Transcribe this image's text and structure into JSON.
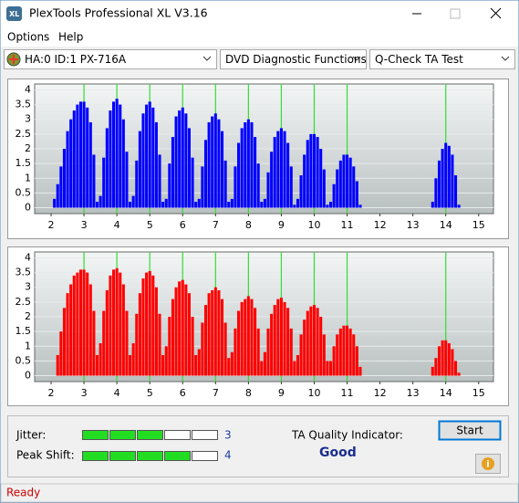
{
  "window": {
    "title": "PlexTools Professional XL V3.16"
  },
  "menu": [
    "Options",
    "Help"
  ],
  "toolbar": {
    "drive": "HA:0 ID:1  PX-716A",
    "function": "DVD Diagnostic Functions",
    "test": "Q-Check TA Test"
  },
  "chart_data": [
    {
      "type": "bar",
      "color": "#0000ff",
      "marker_color": "#33dd33",
      "xlim": [
        1.5,
        15.45
      ],
      "ylim": [
        -0.2,
        4.2
      ],
      "xticks": [
        2,
        3,
        4,
        5,
        6,
        7,
        8,
        9,
        10,
        11,
        12,
        13,
        14,
        15
      ],
      "yticks": [
        0,
        0.5,
        1,
        1.5,
        2,
        2.5,
        3,
        3.5,
        4
      ],
      "markers": [
        3,
        4,
        5,
        6,
        7,
        8,
        9,
        10,
        11,
        14
      ],
      "x": [
        2,
        2.1,
        2.2,
        2.3,
        2.4,
        2.5,
        2.6,
        2.7,
        2.8,
        2.9,
        3,
        3.1,
        3.2,
        3.3,
        3.4,
        3.5,
        3.6,
        3.7,
        3.8,
        3.9,
        4,
        4.1,
        4.2,
        4.3,
        4.4,
        4.5,
        4.6,
        4.7,
        4.8,
        4.9,
        5,
        5.1,
        5.2,
        5.3,
        5.4,
        5.5,
        5.6,
        5.7,
        5.8,
        5.9,
        6,
        6.1,
        6.2,
        6.3,
        6.4,
        6.5,
        6.6,
        6.7,
        6.8,
        6.9,
        7,
        7.1,
        7.2,
        7.3,
        7.4,
        7.5,
        7.6,
        7.7,
        7.8,
        7.9,
        8,
        8.1,
        8.2,
        8.3,
        8.4,
        8.5,
        8.6,
        8.7,
        8.8,
        8.9,
        9,
        9.1,
        9.2,
        9.3,
        9.4,
        9.5,
        9.6,
        9.7,
        9.8,
        9.9,
        10,
        10.1,
        10.2,
        10.3,
        10.4,
        10.5,
        10.6,
        10.7,
        10.8,
        10.9,
        11,
        11.1,
        11.2,
        11.3,
        11.4,
        13.5,
        13.6,
        13.7,
        13.8,
        13.9,
        14,
        14.1,
        14.2,
        14.3,
        14.4
      ],
      "values": [
        0,
        0.3,
        0.8,
        1.4,
        2.0,
        2.6,
        3.0,
        3.3,
        3.5,
        3.6,
        3.6,
        3.4,
        2.9,
        1.8,
        0.2,
        0.4,
        1.7,
        2.7,
        3.3,
        3.6,
        3.7,
        3.5,
        3.0,
        1.9,
        0.2,
        0.4,
        1.6,
        2.6,
        3.2,
        3.5,
        3.6,
        3.4,
        2.9,
        1.8,
        0.2,
        0.3,
        1.5,
        2.4,
        3.1,
        3.3,
        3.4,
        3.2,
        2.7,
        1.7,
        0.2,
        0.3,
        1.4,
        2.3,
        2.9,
        3.1,
        3.2,
        3.0,
        2.6,
        1.6,
        0.2,
        0.3,
        1.4,
        2.2,
        2.7,
        2.9,
        3.0,
        2.9,
        2.4,
        1.5,
        0.2,
        0.3,
        1.2,
        1.9,
        2.4,
        2.6,
        2.7,
        2.6,
        2.2,
        1.4,
        0.1,
        0.3,
        1.1,
        1.8,
        2.3,
        2.5,
        2.5,
        2.4,
        2.0,
        1.3,
        0.1,
        0.2,
        0.8,
        1.3,
        1.6,
        1.8,
        1.8,
        1.7,
        1.4,
        0.9,
        0.1,
        0,
        0.2,
        1.0,
        1.6,
        2.0,
        2.2,
        2.1,
        1.8,
        1.1,
        0.1
      ]
    },
    {
      "type": "bar",
      "color": "#ff0000",
      "marker_color": "#33dd33",
      "xlim": [
        1.5,
        15.45
      ],
      "ylim": [
        -0.2,
        4.2
      ],
      "xticks": [
        2,
        3,
        4,
        5,
        6,
        7,
        8,
        9,
        10,
        11,
        12,
        13,
        14,
        15
      ],
      "yticks": [
        0,
        0.5,
        1,
        1.5,
        2,
        2.5,
        3,
        3.5,
        4
      ],
      "markers": [
        3,
        4,
        5,
        6,
        7,
        8,
        9,
        10,
        11,
        14
      ],
      "x": [
        2,
        2.1,
        2.2,
        2.3,
        2.4,
        2.5,
        2.6,
        2.7,
        2.8,
        2.9,
        3,
        3.1,
        3.2,
        3.3,
        3.4,
        3.5,
        3.6,
        3.7,
        3.8,
        3.9,
        4,
        4.1,
        4.2,
        4.3,
        4.4,
        4.5,
        4.6,
        4.7,
        4.8,
        4.9,
        5,
        5.1,
        5.2,
        5.3,
        5.4,
        5.5,
        5.6,
        5.7,
        5.8,
        5.9,
        6,
        6.1,
        6.2,
        6.3,
        6.4,
        6.5,
        6.6,
        6.7,
        6.8,
        6.9,
        7,
        7.1,
        7.2,
        7.3,
        7.4,
        7.5,
        7.6,
        7.7,
        7.8,
        7.9,
        8,
        8.1,
        8.2,
        8.3,
        8.4,
        8.5,
        8.6,
        8.7,
        8.8,
        8.9,
        9,
        9.1,
        9.2,
        9.3,
        9.4,
        9.5,
        9.6,
        9.7,
        9.8,
        9.9,
        10,
        10.1,
        10.2,
        10.3,
        10.4,
        10.5,
        10.6,
        10.7,
        10.8,
        10.9,
        11,
        11.1,
        11.2,
        11.3,
        11.4,
        13.5,
        13.6,
        13.7,
        13.8,
        13.9,
        14,
        14.1,
        14.2,
        14.3,
        14.4
      ],
      "values": [
        0,
        0,
        0.7,
        1.5,
        2.3,
        2.8,
        3.1,
        3.4,
        3.5,
        3.6,
        3.6,
        3.5,
        3.1,
        2.2,
        0.7,
        1.1,
        2.2,
        2.9,
        3.4,
        3.6,
        3.65,
        3.5,
        3.1,
        2.2,
        0.7,
        1.1,
        2.1,
        2.8,
        3.3,
        3.5,
        3.55,
        3.4,
        3.0,
        2.1,
        0.7,
        1.0,
        2.0,
        2.6,
        3.0,
        3.2,
        3.25,
        3.1,
        2.8,
        2.0,
        0.7,
        0.9,
        1.8,
        2.4,
        2.8,
        2.9,
        3.0,
        2.9,
        2.6,
        1.8,
        0.6,
        0.8,
        1.6,
        2.2,
        2.5,
        2.6,
        2.7,
        2.6,
        2.3,
        1.6,
        0.5,
        0.8,
        1.6,
        2.1,
        2.4,
        2.6,
        2.65,
        2.5,
        2.3,
        1.6,
        0.5,
        0.7,
        1.4,
        1.9,
        2.2,
        2.35,
        2.4,
        2.3,
        2.0,
        1.4,
        0.5,
        0.5,
        1.0,
        1.4,
        1.6,
        1.7,
        1.7,
        1.6,
        1.4,
        1.0,
        0.3,
        0,
        0.3,
        0.6,
        1.0,
        1.2,
        1.2,
        1.1,
        0.9,
        0.5,
        0.1
      ]
    }
  ],
  "results": {
    "jitter": {
      "label": "Jitter:",
      "value": 3
    },
    "peak_shift": {
      "label": "Peak Shift:",
      "value": 4
    },
    "quality_label": "TA Quality Indicator:",
    "quality": "Good",
    "start": "Start"
  },
  "status": "Ready"
}
